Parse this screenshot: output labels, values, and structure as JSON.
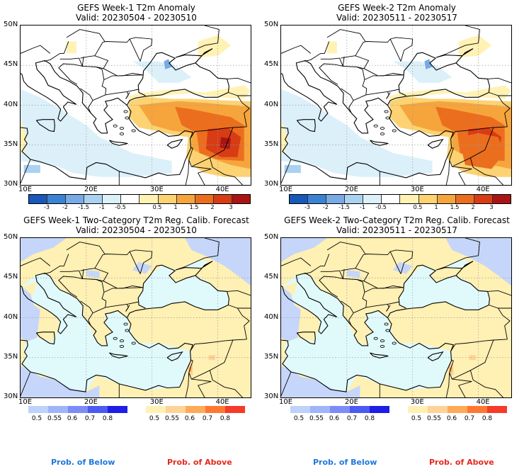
{
  "panels": [
    {
      "title": "GEFS Week-1 T2m Anomaly",
      "valid": "Valid: 20230504 - 20230510"
    },
    {
      "title": "GEFS Week-2 T2m Anomaly",
      "valid": "Valid: 20230511 - 20230517"
    },
    {
      "title": "GEFS Week-1 Two-Category T2m Reg. Calib. Forecast",
      "valid": "Valid: 20230504 - 20230510"
    },
    {
      "title": "GEFS Week-2 Two-Category T2m Reg. Calib. Forecast",
      "valid": "Valid: 20230511 - 20230517"
    }
  ],
  "lat_ticks": [
    "50N",
    "45N",
    "40N",
    "35N",
    "30N"
  ],
  "lon_ticks": [
    "10E",
    "20E",
    "30E",
    "40E"
  ],
  "anomaly_colorbar": {
    "labels": [
      "-3",
      "-2",
      "-1.5",
      "-1",
      "-0.5",
      "0.5",
      "1",
      "1.5",
      "2",
      "3"
    ],
    "colors": [
      "#1858b8",
      "#3c82d2",
      "#78aae6",
      "#aad2f0",
      "#dcf0fa",
      "#ffffff",
      "#fff2b4",
      "#fcd273",
      "#f6a53c",
      "#eb6e1e",
      "#d73c14",
      "#aa1414"
    ]
  },
  "prob_below": {
    "labels": [
      "0.5",
      "0.55",
      "0.6",
      "0.7",
      "0.8"
    ],
    "colors": [
      "#bed2fa",
      "#a0b4fa",
      "#7d8cf5",
      "#4b5af0",
      "#1e1ee6"
    ],
    "caption": "Prob. of Below"
  },
  "prob_above": {
    "labels": [
      "0.5",
      "0.55",
      "0.6",
      "0.7",
      "0.8"
    ],
    "colors": [
      "#fff0b4",
      "#ffd296",
      "#ffaa5a",
      "#ff7832",
      "#f53c28"
    ],
    "caption": "Prob. of Above"
  },
  "colors": {
    "sea_prob": "#e0fafc",
    "land_above": "#fff0b4",
    "land_below": "#c6d6fa",
    "anomaly_blue": "#dcf0fa",
    "anomaly_warm": "#f6a53c",
    "anomaly_hot": "#d73c14"
  }
}
